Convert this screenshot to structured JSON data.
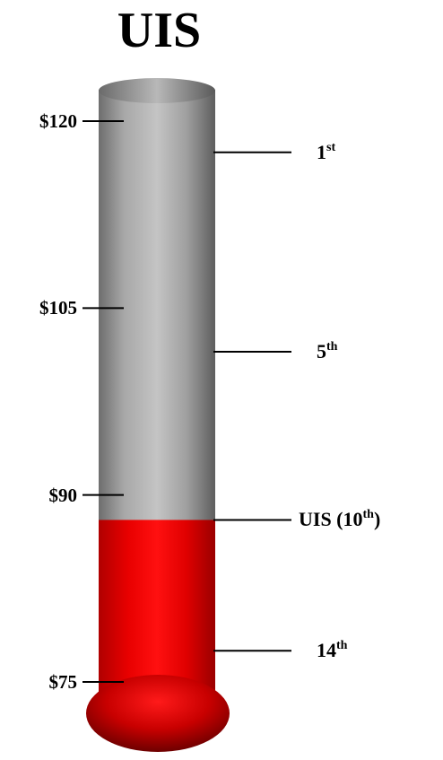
{
  "chart_data": {
    "type": "thermometer",
    "title": "UIS",
    "value": 88,
    "ylim": [
      75,
      120
    ],
    "y_ticks": [
      {
        "value": 120,
        "label": "$120"
      },
      {
        "value": 105,
        "label": "$105"
      },
      {
        "value": 90,
        "label": "$90"
      },
      {
        "value": 75,
        "label": "$75"
      }
    ],
    "markers": [
      {
        "value": 117.5,
        "label": "1",
        "suffix": "st"
      },
      {
        "value": 101.5,
        "label": "5",
        "suffix": "th"
      },
      {
        "value": 88,
        "label": "UIS (10",
        "suffix": "th",
        "close": ")"
      },
      {
        "value": 77.5,
        "label": "14",
        "suffix": "th"
      }
    ],
    "colors": {
      "fill": "#ff0000",
      "tube": "#bfbfbf",
      "text": "#000000"
    }
  }
}
